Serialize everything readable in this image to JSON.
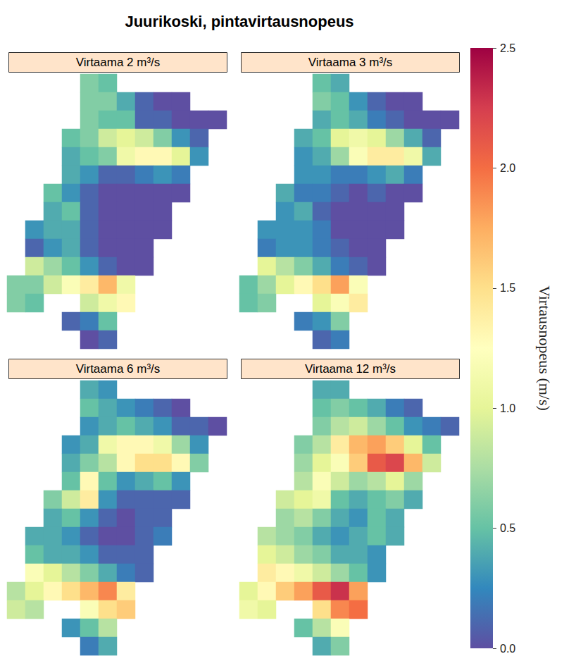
{
  "chart_data": {
    "type": "heatmap",
    "title": "Juurikoski, pintavirtausnopeus",
    "tick_labels": false,
    "panels": [
      {
        "title": "Virtaama 2 m³/s",
        "cells": [
          [
            null,
            null,
            null,
            null,
            0.6,
            0.5,
            null,
            null,
            null,
            null,
            null,
            null
          ],
          [
            null,
            null,
            null,
            null,
            0.6,
            0.6,
            0.4,
            0.1,
            0,
            0,
            null,
            null
          ],
          [
            null,
            null,
            null,
            null,
            0.6,
            0.5,
            0.5,
            0.1,
            0.1,
            0,
            0,
            0
          ],
          [
            null,
            null,
            null,
            0.5,
            0.6,
            0.9,
            1.0,
            0.9,
            0.6,
            0.3,
            0.1,
            null
          ],
          [
            null,
            null,
            null,
            0.4,
            0.5,
            0.6,
            1.1,
            1.3,
            1.3,
            1.0,
            0.3,
            null
          ],
          [
            null,
            null,
            null,
            0.4,
            0.3,
            0.1,
            0.1,
            0.2,
            0.3,
            0.2,
            null,
            null
          ],
          [
            null,
            null,
            0.5,
            0.3,
            0.1,
            0,
            0,
            0,
            0,
            0,
            null,
            null
          ],
          [
            null,
            null,
            0.4,
            0.5,
            0.1,
            0,
            0,
            0,
            0,
            null,
            null,
            null
          ],
          [
            null,
            0.3,
            0.4,
            0.4,
            0.1,
            0,
            0,
            0,
            0,
            null,
            null,
            null
          ],
          [
            null,
            0.1,
            0.3,
            0.4,
            0.1,
            0,
            0,
            0,
            null,
            null,
            null,
            null
          ],
          [
            null,
            0.9,
            0.7,
            0.5,
            0.3,
            0.1,
            0,
            0,
            null,
            null,
            null,
            null
          ],
          [
            0.6,
            0.6,
            0.9,
            1.2,
            1.4,
            1.7,
            1.1,
            null,
            null,
            null,
            null,
            null
          ],
          [
            0.6,
            0.5,
            null,
            null,
            0.9,
            1.1,
            1.3,
            null,
            null,
            null,
            null,
            null
          ],
          [
            null,
            null,
            null,
            0.1,
            0.2,
            0.5,
            null,
            null,
            null,
            null,
            null,
            null
          ],
          [
            null,
            null,
            null,
            null,
            0,
            0.1,
            null,
            null,
            null,
            null,
            null,
            null
          ]
        ]
      },
      {
        "title": "Virtaama 3 m³/s",
        "cells": [
          [
            null,
            null,
            null,
            null,
            0.5,
            0.4,
            null,
            null,
            null,
            null,
            null,
            null
          ],
          [
            null,
            null,
            null,
            null,
            0.6,
            0.5,
            0.3,
            0.1,
            0,
            0,
            null,
            null
          ],
          [
            null,
            null,
            null,
            null,
            0.4,
            0.5,
            0.4,
            0.2,
            0.1,
            0,
            0,
            0
          ],
          [
            null,
            null,
            null,
            0.4,
            0.5,
            1.0,
            1.1,
            1.0,
            0.7,
            0.4,
            0.1,
            null
          ],
          [
            null,
            null,
            null,
            0.3,
            0.4,
            0.7,
            1.2,
            1.4,
            1.4,
            1.1,
            0.4,
            null
          ],
          [
            null,
            null,
            null,
            0.3,
            0.3,
            0.2,
            0.2,
            0.3,
            0.4,
            0.2,
            null,
            null
          ],
          [
            null,
            null,
            0.4,
            0.2,
            0.2,
            0.1,
            0,
            0.1,
            0,
            0,
            null,
            null
          ],
          [
            null,
            null,
            0.3,
            0.4,
            0.1,
            0,
            0,
            0,
            0,
            null,
            null,
            null
          ],
          [
            null,
            0.3,
            0.3,
            0.3,
            0.2,
            0,
            0,
            0,
            0,
            null,
            null,
            null
          ],
          [
            null,
            0.2,
            0.3,
            0.3,
            0.2,
            0.1,
            0,
            0,
            null,
            null,
            null,
            null
          ],
          [
            null,
            1.0,
            0.8,
            0.6,
            0.4,
            0.2,
            0.1,
            0,
            null,
            null,
            null,
            null
          ],
          [
            0.5,
            0.7,
            1.0,
            1.3,
            1.5,
            1.8,
            1.2,
            null,
            null,
            null,
            null,
            null
          ],
          [
            0.5,
            0.6,
            null,
            null,
            1.0,
            1.2,
            1.4,
            null,
            null,
            null,
            null,
            null
          ],
          [
            null,
            null,
            null,
            0.2,
            0.3,
            0.6,
            null,
            null,
            null,
            null,
            null,
            null
          ],
          [
            null,
            null,
            null,
            null,
            0.1,
            0.2,
            null,
            null,
            null,
            null,
            null,
            null
          ]
        ]
      },
      {
        "title": "Virtaama 6 m³/s",
        "cells": [
          [
            null,
            null,
            null,
            null,
            0.4,
            0.3,
            null,
            null,
            null,
            null,
            null,
            null
          ],
          [
            null,
            null,
            null,
            null,
            0.5,
            0.4,
            0.3,
            0.2,
            0.1,
            0,
            null,
            null
          ],
          [
            null,
            null,
            null,
            null,
            0.3,
            0.4,
            0.5,
            0.4,
            0.3,
            0.1,
            0.1,
            0
          ],
          [
            null,
            null,
            null,
            0.3,
            0.4,
            1.1,
            1.3,
            1.3,
            1.1,
            0.7,
            0.3,
            null
          ],
          [
            null,
            null,
            null,
            0.4,
            0.6,
            0.8,
            1.3,
            1.5,
            1.5,
            1.3,
            0.6,
            null
          ],
          [
            null,
            null,
            null,
            0.5,
            1.3,
            0.5,
            0.3,
            0.4,
            0.5,
            0.3,
            null,
            null
          ],
          [
            null,
            null,
            0.6,
            0.9,
            1.4,
            0.3,
            0.1,
            0.1,
            0.1,
            0.1,
            null,
            null
          ],
          [
            null,
            null,
            0.4,
            0.5,
            0.3,
            0.1,
            0,
            0.1,
            0.1,
            null,
            null,
            null
          ],
          [
            null,
            0.4,
            0.4,
            0.3,
            0.1,
            0,
            0,
            0.1,
            0.2,
            null,
            null,
            null
          ],
          [
            null,
            0.5,
            0.4,
            0.4,
            0.3,
            0.1,
            0.1,
            0.1,
            null,
            null,
            null,
            null
          ],
          [
            null,
            1.2,
            1.0,
            0.8,
            0.6,
            0.4,
            0.2,
            0.1,
            null,
            null,
            null,
            null
          ],
          [
            0.8,
            1.0,
            1.3,
            1.5,
            1.7,
            1.9,
            1.4,
            null,
            null,
            null,
            null,
            null
          ],
          [
            0.9,
            0.8,
            null,
            null,
            1.2,
            1.5,
            1.6,
            null,
            null,
            null,
            null,
            null
          ],
          [
            null,
            null,
            null,
            0.3,
            0.5,
            0.8,
            null,
            null,
            null,
            null,
            null,
            null
          ],
          [
            null,
            null,
            null,
            null,
            0.2,
            0.4,
            null,
            null,
            null,
            null,
            null,
            null
          ]
        ]
      },
      {
        "title": "Virtaama 12 m³/s",
        "cells": [
          [
            null,
            null,
            null,
            null,
            0.4,
            0.4,
            null,
            null,
            null,
            null,
            null,
            null
          ],
          [
            null,
            null,
            null,
            null,
            0.5,
            0.6,
            0.5,
            0.4,
            0.2,
            0.1,
            null,
            null
          ],
          [
            null,
            null,
            null,
            null,
            0.6,
            0.8,
            0.9,
            0.7,
            0.5,
            0.3,
            0.2,
            0.1
          ],
          [
            null,
            null,
            null,
            0.6,
            0.8,
            1.4,
            1.7,
            1.8,
            1.6,
            1.0,
            0.5,
            null
          ],
          [
            null,
            null,
            null,
            0.7,
            1.0,
            1.2,
            1.6,
            2.1,
            2.2,
            1.7,
            0.9,
            null
          ],
          [
            null,
            null,
            null,
            0.8,
            1.2,
            0.9,
            0.7,
            0.8,
            1.0,
            0.7,
            null,
            null
          ],
          [
            null,
            null,
            0.9,
            1.0,
            1.1,
            0.5,
            0.4,
            0.5,
            0.6,
            0.4,
            null,
            null
          ],
          [
            null,
            null,
            0.7,
            0.8,
            0.6,
            0.4,
            0.3,
            0.5,
            0.4,
            null,
            null,
            null
          ],
          [
            null,
            0.8,
            0.7,
            0.6,
            0.4,
            0.3,
            0.4,
            0.5,
            0.4,
            null,
            null,
            null
          ],
          [
            null,
            1.0,
            0.9,
            0.7,
            0.6,
            0.4,
            0.4,
            0.3,
            null,
            null,
            null,
            null
          ],
          [
            null,
            1.4,
            1.3,
            1.1,
            0.9,
            0.7,
            0.5,
            0.3,
            null,
            null,
            null,
            null
          ],
          [
            1.0,
            1.3,
            1.6,
            1.8,
            2.1,
            2.3,
            1.8,
            null,
            null,
            null,
            null,
            null
          ],
          [
            1.1,
            1.0,
            null,
            null,
            1.5,
            1.9,
            2.0,
            null,
            null,
            null,
            null,
            null
          ],
          [
            null,
            null,
            null,
            0.5,
            0.8,
            1.2,
            null,
            null,
            null,
            null,
            null,
            null
          ],
          [
            null,
            null,
            null,
            null,
            0.4,
            0.6,
            null,
            null,
            null,
            null,
            null,
            null
          ]
        ]
      }
    ],
    "colorbar": {
      "title": "Virtausnopeus (m/s)",
      "range": [
        0,
        2.5
      ],
      "ticks": [
        {
          "value": 0,
          "label": "0.0"
        },
        0.5,
        {
          "value": 1,
          "label": "1.0"
        },
        1.5,
        {
          "value": 2,
          "label": "2.0"
        },
        2.5
      ]
    }
  }
}
